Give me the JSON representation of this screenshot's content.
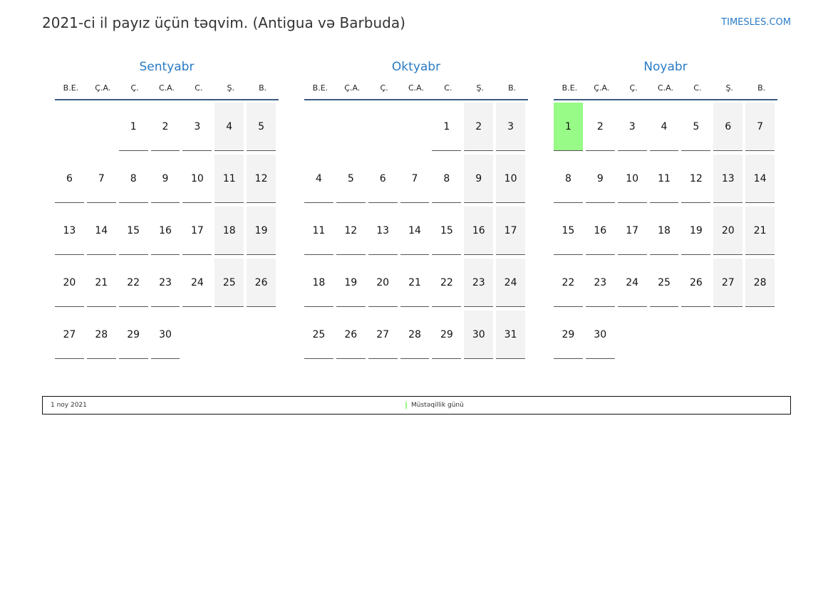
{
  "header": {
    "title": "2021-ci il payız üçün təqvim. (Antigua və Barbuda)",
    "brand": "TIMESLES.COM"
  },
  "weekdays": [
    "B.E.",
    "Ç.A.",
    "Ç.",
    "C.A.",
    "C.",
    "Ş.",
    "B."
  ],
  "colors": {
    "accent": "#2a7bc4",
    "holiday": "#98fb88",
    "weekend": "#f3f3f3"
  },
  "months": [
    {
      "name": "Sentyabr",
      "weeks": [
        [
          "",
          "",
          "1",
          "2",
          "3",
          "4",
          "5"
        ],
        [
          "6",
          "7",
          "8",
          "9",
          "10",
          "11",
          "12"
        ],
        [
          "13",
          "14",
          "15",
          "16",
          "17",
          "18",
          "19"
        ],
        [
          "20",
          "21",
          "22",
          "23",
          "24",
          "25",
          "26"
        ],
        [
          "27",
          "28",
          "29",
          "30",
          "",
          "",
          ""
        ]
      ],
      "holidays": []
    },
    {
      "name": "Oktyabr",
      "weeks": [
        [
          "",
          "",
          "",
          "",
          "1",
          "2",
          "3"
        ],
        [
          "4",
          "5",
          "6",
          "7",
          "8",
          "9",
          "10"
        ],
        [
          "11",
          "12",
          "13",
          "14",
          "15",
          "16",
          "17"
        ],
        [
          "18",
          "19",
          "20",
          "21",
          "22",
          "23",
          "24"
        ],
        [
          "25",
          "26",
          "27",
          "28",
          "29",
          "30",
          "31"
        ]
      ],
      "holidays": []
    },
    {
      "name": "Noyabr",
      "weeks": [
        [
          "1",
          "2",
          "3",
          "4",
          "5",
          "6",
          "7"
        ],
        [
          "8",
          "9",
          "10",
          "11",
          "12",
          "13",
          "14"
        ],
        [
          "15",
          "16",
          "17",
          "18",
          "19",
          "20",
          "21"
        ],
        [
          "22",
          "23",
          "24",
          "25",
          "26",
          "27",
          "28"
        ],
        [
          "29",
          "30",
          "",
          "",
          "",
          "",
          ""
        ]
      ],
      "holidays": [
        "1"
      ]
    }
  ],
  "legend": {
    "date": "1 noy 2021",
    "name": "Müstəqillik günü"
  }
}
